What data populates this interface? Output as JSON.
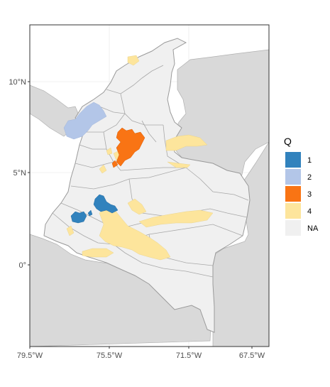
{
  "chart_data": {
    "type": "map",
    "title": "",
    "xlabel": "",
    "ylabel": "",
    "x_ticks": [
      "79.5°W",
      "75.5°W",
      "71.5°W",
      "67.5°W"
    ],
    "y_ticks": [
      "10°N",
      "5°N",
      "0°"
    ],
    "xlim": [
      -79.5,
      -67.5
    ],
    "ylim": [
      -4.2,
      12.5
    ],
    "grid": true,
    "legend": {
      "title": "Q",
      "position": "right",
      "entries": [
        {
          "label": "1",
          "color": "#3182bd"
        },
        {
          "label": "2",
          "color": "#b3c6e8"
        },
        {
          "label": "3",
          "color": "#f97414"
        },
        {
          "label": "4",
          "color": "#fde59c"
        },
        {
          "label": "NA",
          "color": "#f0f0f0"
        }
      ]
    },
    "colors": {
      "background_land": "#d9d9d9",
      "sea": "#ffffff",
      "na_fill": "#f0f0f0",
      "border": "#9a9a9a"
    }
  }
}
